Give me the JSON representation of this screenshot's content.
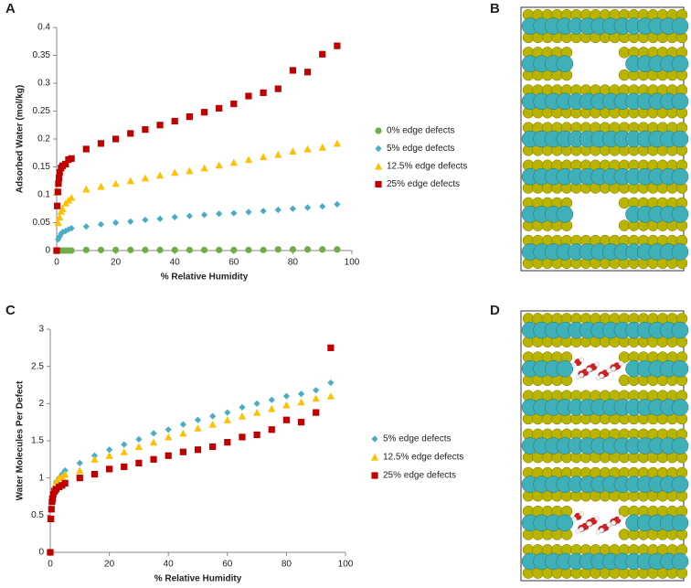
{
  "panel_labels": [
    "A",
    "B",
    "C",
    "D"
  ],
  "chart_data": [
    {
      "type": "scatter",
      "y_label": "Adsorbed Water (mol/kg)",
      "x_label": "% Relative Humidity",
      "xlim": [
        0,
        100
      ],
      "xticks": [
        0,
        20,
        40,
        60,
        80,
        100
      ],
      "ylim": [
        0,
        0.4
      ],
      "yticks": [
        0,
        0.05,
        0.1,
        0.15,
        0.2,
        0.25,
        0.3,
        0.35,
        0.4
      ],
      "legend": "right",
      "grid": false,
      "series": [
        {
          "name": "0% edge defects",
          "color": "#70ad47",
          "marker": "circle",
          "x": [
            0,
            1,
            2,
            3,
            4,
            5,
            10,
            15,
            20,
            25,
            30,
            35,
            40,
            45,
            50,
            55,
            60,
            65,
            70,
            75,
            80,
            85,
            90,
            95
          ],
          "values": [
            0,
            0,
            0,
            0,
            0,
            0,
            0.001,
            0.001,
            0.001,
            0.001,
            0.001,
            0.001,
            0.001,
            0.001,
            0.001,
            0.001,
            0.001,
            0.001,
            0.001,
            0.002,
            0.002,
            0.002,
            0.002,
            0.002
          ]
        },
        {
          "name": "5% edge defects",
          "color": "#4bacc6",
          "marker": "diamond",
          "x": [
            0,
            0.5,
            1,
            1.5,
            2,
            3,
            4,
            5,
            10,
            15,
            20,
            25,
            30,
            35,
            40,
            45,
            50,
            55,
            60,
            65,
            70,
            75,
            80,
            85,
            90,
            95
          ],
          "values": [
            0,
            0.02,
            0.025,
            0.03,
            0.033,
            0.035,
            0.038,
            0.04,
            0.043,
            0.047,
            0.05,
            0.052,
            0.055,
            0.057,
            0.06,
            0.062,
            0.064,
            0.066,
            0.067,
            0.069,
            0.071,
            0.073,
            0.075,
            0.077,
            0.079,
            0.083
          ]
        },
        {
          "name": "12.5% edge defects",
          "color": "#ffc000",
          "marker": "triangle",
          "x": [
            0,
            0.5,
            1,
            1.5,
            2,
            3,
            4,
            5,
            10,
            15,
            20,
            25,
            30,
            35,
            40,
            45,
            50,
            55,
            60,
            65,
            70,
            75,
            80,
            85,
            90,
            95
          ],
          "values": [
            0,
            0.05,
            0.06,
            0.07,
            0.075,
            0.085,
            0.09,
            0.095,
            0.11,
            0.115,
            0.12,
            0.125,
            0.13,
            0.135,
            0.14,
            0.143,
            0.148,
            0.153,
            0.158,
            0.163,
            0.168,
            0.172,
            0.178,
            0.182,
            0.185,
            0.192
          ]
        },
        {
          "name": "25% edge defects",
          "color": "#c00000",
          "marker": "square",
          "x": [
            0,
            0.2,
            0.4,
            0.6,
            0.8,
            1,
            1.5,
            2,
            3,
            4,
            5,
            10,
            15,
            20,
            25,
            30,
            35,
            40,
            45,
            50,
            55,
            60,
            65,
            70,
            75,
            80,
            85,
            90,
            95
          ],
          "values": [
            0,
            0.08,
            0.105,
            0.12,
            0.13,
            0.14,
            0.148,
            0.152,
            0.155,
            0.163,
            0.165,
            0.182,
            0.192,
            0.2,
            0.21,
            0.217,
            0.225,
            0.232,
            0.24,
            0.248,
            0.255,
            0.263,
            0.277,
            0.283,
            0.29,
            0.323,
            0.32,
            0.352,
            0.367
          ]
        }
      ]
    },
    {
      "type": "scatter",
      "y_label": "Water Molecules Per Defect",
      "x_label": "% Relative Humidity",
      "xlim": [
        0,
        100
      ],
      "xticks": [
        0,
        20,
        40,
        60,
        80,
        100
      ],
      "ylim": [
        0,
        3
      ],
      "yticks": [
        0,
        0.5,
        1,
        1.5,
        2,
        2.5,
        3
      ],
      "legend": "right",
      "grid": false,
      "series": [
        {
          "name": "5% edge defects",
          "color": "#4bacc6",
          "marker": "diamond",
          "x": [
            0,
            0.5,
            1,
            2,
            3,
            4,
            5,
            10,
            15,
            20,
            25,
            30,
            35,
            40,
            45,
            50,
            55,
            60,
            65,
            70,
            75,
            80,
            85,
            90,
            95
          ],
          "values": [
            0.45,
            0.75,
            0.85,
            0.95,
            1,
            1.05,
            1.1,
            1.2,
            1.3,
            1.38,
            1.45,
            1.52,
            1.6,
            1.65,
            1.72,
            1.78,
            1.83,
            1.88,
            1.95,
            2,
            2.05,
            2.1,
            2.13,
            2.18,
            2.28
          ]
        },
        {
          "name": "12.5% edge defects",
          "color": "#ffc000",
          "marker": "triangle",
          "x": [
            0,
            0.5,
            1,
            2,
            3,
            4,
            5,
            10,
            15,
            20,
            25,
            30,
            35,
            40,
            45,
            50,
            55,
            60,
            65,
            70,
            75,
            80,
            85,
            90,
            95
          ],
          "values": [
            0.45,
            0.7,
            0.85,
            0.95,
            1,
            1.02,
            1.05,
            1.1,
            1.25,
            1.3,
            1.35,
            1.42,
            1.48,
            1.55,
            1.6,
            1.67,
            1.72,
            1.78,
            1.83,
            1.88,
            1.93,
            1.98,
            2.02,
            2.07,
            2.1
          ]
        },
        {
          "name": "25% edge defects",
          "color": "#c00000",
          "marker": "square",
          "x": [
            0,
            0.2,
            0.4,
            0.6,
            0.8,
            1,
            1.5,
            2,
            3,
            4,
            5,
            10,
            15,
            20,
            25,
            30,
            35,
            40,
            45,
            50,
            55,
            60,
            65,
            70,
            75,
            80,
            85,
            90,
            95
          ],
          "values": [
            0,
            0.45,
            0.58,
            0.68,
            0.72,
            0.78,
            0.82,
            0.85,
            0.88,
            0.9,
            0.93,
            1,
            1.05,
            1.12,
            1.15,
            1.2,
            1.25,
            1.3,
            1.35,
            1.38,
            1.42,
            1.48,
            1.55,
            1.58,
            1.65,
            1.78,
            1.75,
            1.88,
            2.75
          ]
        }
      ]
    }
  ]
}
